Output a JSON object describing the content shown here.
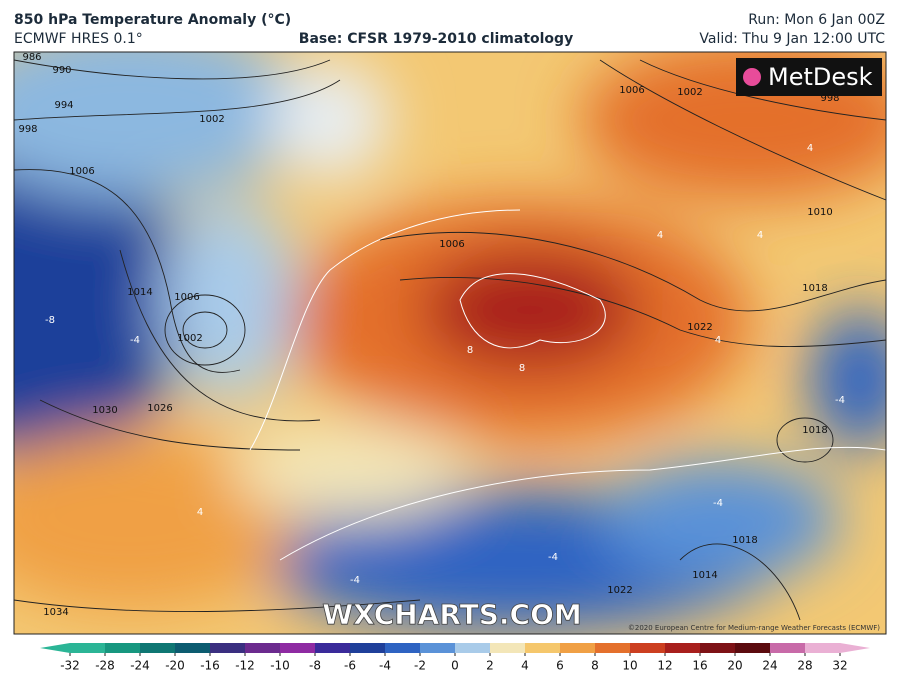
{
  "header": {
    "title": "850 hPa Temperature Anomaly (°C)",
    "model": "ECMWF HRES 0.1°",
    "base": "Base: CFSR 1979-2010 climatology",
    "run": "Run: Mon 6 Jan 00Z",
    "valid": "Valid: Thu 9 Jan 12:00 UTC"
  },
  "map": {
    "logo": "MetDesk",
    "watermark": "WXCHARTS.COM",
    "copyright": "©2020 European Centre for Medium-range Weather Forecasts (ECMWF)",
    "isobar_labels": [
      986,
      990,
      994,
      998,
      1002,
      1006,
      1006,
      1002,
      1014,
      1030,
      1026,
      1034,
      1006,
      1022,
      1018,
      1010,
      1006,
      1002,
      998,
      1018,
      1018,
      1014,
      1022
    ],
    "anomaly_labels": [
      -8,
      -4,
      8,
      8,
      4,
      -4,
      -4,
      -4,
      -4,
      4,
      4,
      4,
      4
    ]
  },
  "colorbar": {
    "ticks": [
      -32,
      -28,
      -24,
      -20,
      -16,
      -12,
      -10,
      -8,
      -6,
      -4,
      -2,
      0,
      2,
      4,
      6,
      8,
      10,
      12,
      16,
      20,
      24,
      28,
      32
    ],
    "colors": [
      "#2bb596",
      "#17977f",
      "#0f7773",
      "#0c5c70",
      "#3a2f80",
      "#6b2a8e",
      "#8e2aa2",
      "#3a2a9a",
      "#1f3f9a",
      "#2e63c2",
      "#5a92d8",
      "#a9cbe9",
      "#f3e6b8",
      "#f5c76c",
      "#f0a045",
      "#e4702c",
      "#cc3f20",
      "#a81f1c",
      "#7e1216",
      "#5c0b0f",
      "#c86aa8",
      "#eab0d4"
    ]
  }
}
